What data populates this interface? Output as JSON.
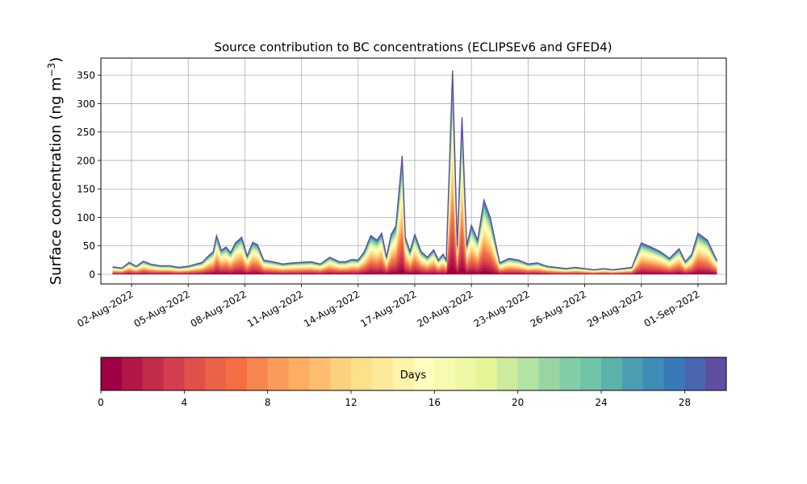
{
  "chart_data": [
    {
      "type": "area",
      "stacked": true,
      "title": "Source contribution to BC concentrations (ECLIPSEv6 and GFED4)",
      "ylabel": "Surface concentration (ng m",
      "ylabel_exp": "−3",
      "ylabel_close": ")",
      "ylim": [
        -17,
        380
      ],
      "yticks": [
        0,
        50,
        100,
        150,
        200,
        250,
        300,
        350
      ],
      "xlim": [
        "2022-07-31T09:00",
        "2022-09-02T12:00"
      ],
      "xticks": [
        "2022-08-02",
        "2022-08-05",
        "2022-08-08",
        "2022-08-11",
        "2022-08-14",
        "2022-08-17",
        "2022-08-20",
        "2022-08-23",
        "2022-08-26",
        "2022-08-29",
        "2022-09-01"
      ],
      "xtick_labels": [
        "02-Aug-2022",
        "05-Aug-2022",
        "08-Aug-2022",
        "11-Aug-2022",
        "14-Aug-2022",
        "17-Aug-2022",
        "20-Aug-2022",
        "23-Aug-2022",
        "26-Aug-2022",
        "29-Aug-2022",
        "01-Sep-2022"
      ],
      "grid": true,
      "total_series": {
        "x": [
          "2022-08-01T00:00",
          "2022-08-01T12:00",
          "2022-08-01T21:00",
          "2022-08-02T06:00",
          "2022-08-02T15:00",
          "2022-08-03T00:00",
          "2022-08-03T12:00",
          "2022-08-04T00:00",
          "2022-08-04T12:00",
          "2022-08-05T00:00",
          "2022-08-05T18:00",
          "2022-08-06T00:00",
          "2022-08-06T08:00",
          "2022-08-06T12:00",
          "2022-08-06T18:00",
          "2022-08-07T00:00",
          "2022-08-07T06:00",
          "2022-08-07T12:00",
          "2022-08-07T20:00",
          "2022-08-08T03:00",
          "2022-08-08T10:00",
          "2022-08-08T16:00",
          "2022-08-09T00:00",
          "2022-08-09T12:00",
          "2022-08-10T00:00",
          "2022-08-10T12:00",
          "2022-08-11T00:00",
          "2022-08-11T12:00",
          "2022-08-12T00:00",
          "2022-08-12T12:00",
          "2022-08-13T00:00",
          "2022-08-13T08:00",
          "2022-08-13T16:00",
          "2022-08-14T00:00",
          "2022-08-14T08:00",
          "2022-08-14T16:00",
          "2022-08-15T00:00",
          "2022-08-15T06:00",
          "2022-08-15T12:00",
          "2022-08-15T18:00",
          "2022-08-16T00:00",
          "2022-08-16T08:00",
          "2022-08-16T12:00",
          "2022-08-16T18:00",
          "2022-08-17T00:00",
          "2022-08-17T08:00",
          "2022-08-17T16:00",
          "2022-08-18T00:00",
          "2022-08-18T06:00",
          "2022-08-18T12:00",
          "2022-08-18T16:00",
          "2022-08-19T00:00",
          "2022-08-19T06:00",
          "2022-08-19T12:00",
          "2022-08-19T18:00",
          "2022-08-20T00:00",
          "2022-08-20T08:00",
          "2022-08-20T16:00",
          "2022-08-21T00:00",
          "2022-08-21T12:00",
          "2022-08-22T00:00",
          "2022-08-22T12:00",
          "2022-08-23T00:00",
          "2022-08-23T12:00",
          "2022-08-24T00:00",
          "2022-08-24T12:00",
          "2022-08-25T00:00",
          "2022-08-25T12:00",
          "2022-08-26T00:00",
          "2022-08-26T12:00",
          "2022-08-27T00:00",
          "2022-08-27T12:00",
          "2022-08-28T00:00",
          "2022-08-28T12:00",
          "2022-08-29T00:00",
          "2022-08-29T12:00",
          "2022-08-30T00:00",
          "2022-08-30T12:00",
          "2022-08-31T00:00",
          "2022-08-31T08:00",
          "2022-08-31T16:00",
          "2022-09-01T00:00",
          "2022-09-01T12:00",
          "2022-09-02T00:00"
        ],
        "values": [
          13,
          11,
          21,
          14,
          23,
          18,
          15,
          15,
          12,
          14,
          21,
          30,
          40,
          68,
          42,
          48,
          38,
          55,
          65,
          32,
          56,
          52,
          25,
          22,
          18,
          20,
          21,
          22,
          18,
          30,
          22,
          22,
          26,
          25,
          40,
          68,
          60,
          72,
          30,
          70,
          85,
          208,
          65,
          40,
          70,
          40,
          30,
          43,
          25,
          35,
          25,
          358,
          50,
          276,
          50,
          86,
          60,
          130,
          100,
          20,
          28,
          25,
          18,
          20,
          14,
          12,
          10,
          12,
          10,
          8,
          10,
          8,
          10,
          12,
          55,
          48,
          40,
          28,
          45,
          22,
          35,
          72,
          60,
          24
        ]
      },
      "colorbar": {
        "label": "Days",
        "ticks": [
          0,
          4,
          8,
          12,
          16,
          20,
          24,
          28
        ],
        "range": [
          0,
          30
        ],
        "bins": 30,
        "colors": [
          "#9e0142",
          "#b31747",
          "#c42c4b",
          "#d53e4f",
          "#e0514a",
          "#ea6247",
          "#f46d43",
          "#f78550",
          "#fa9a5b",
          "#fdae61",
          "#fdbf6f",
          "#fdd07f",
          "#fee08b",
          "#fee99a",
          "#fff2aa",
          "#ffffbf",
          "#f7fbb0",
          "#eef8a4",
          "#e6f598",
          "#cdeb9e",
          "#b4e2a2",
          "#99d5a4",
          "#82cda5",
          "#71c3a5",
          "#5bb3a9",
          "#4b9eb2",
          "#3f8cb9",
          "#3a79b8",
          "#4a66af",
          "#5e4fa2"
        ]
      }
    }
  ]
}
